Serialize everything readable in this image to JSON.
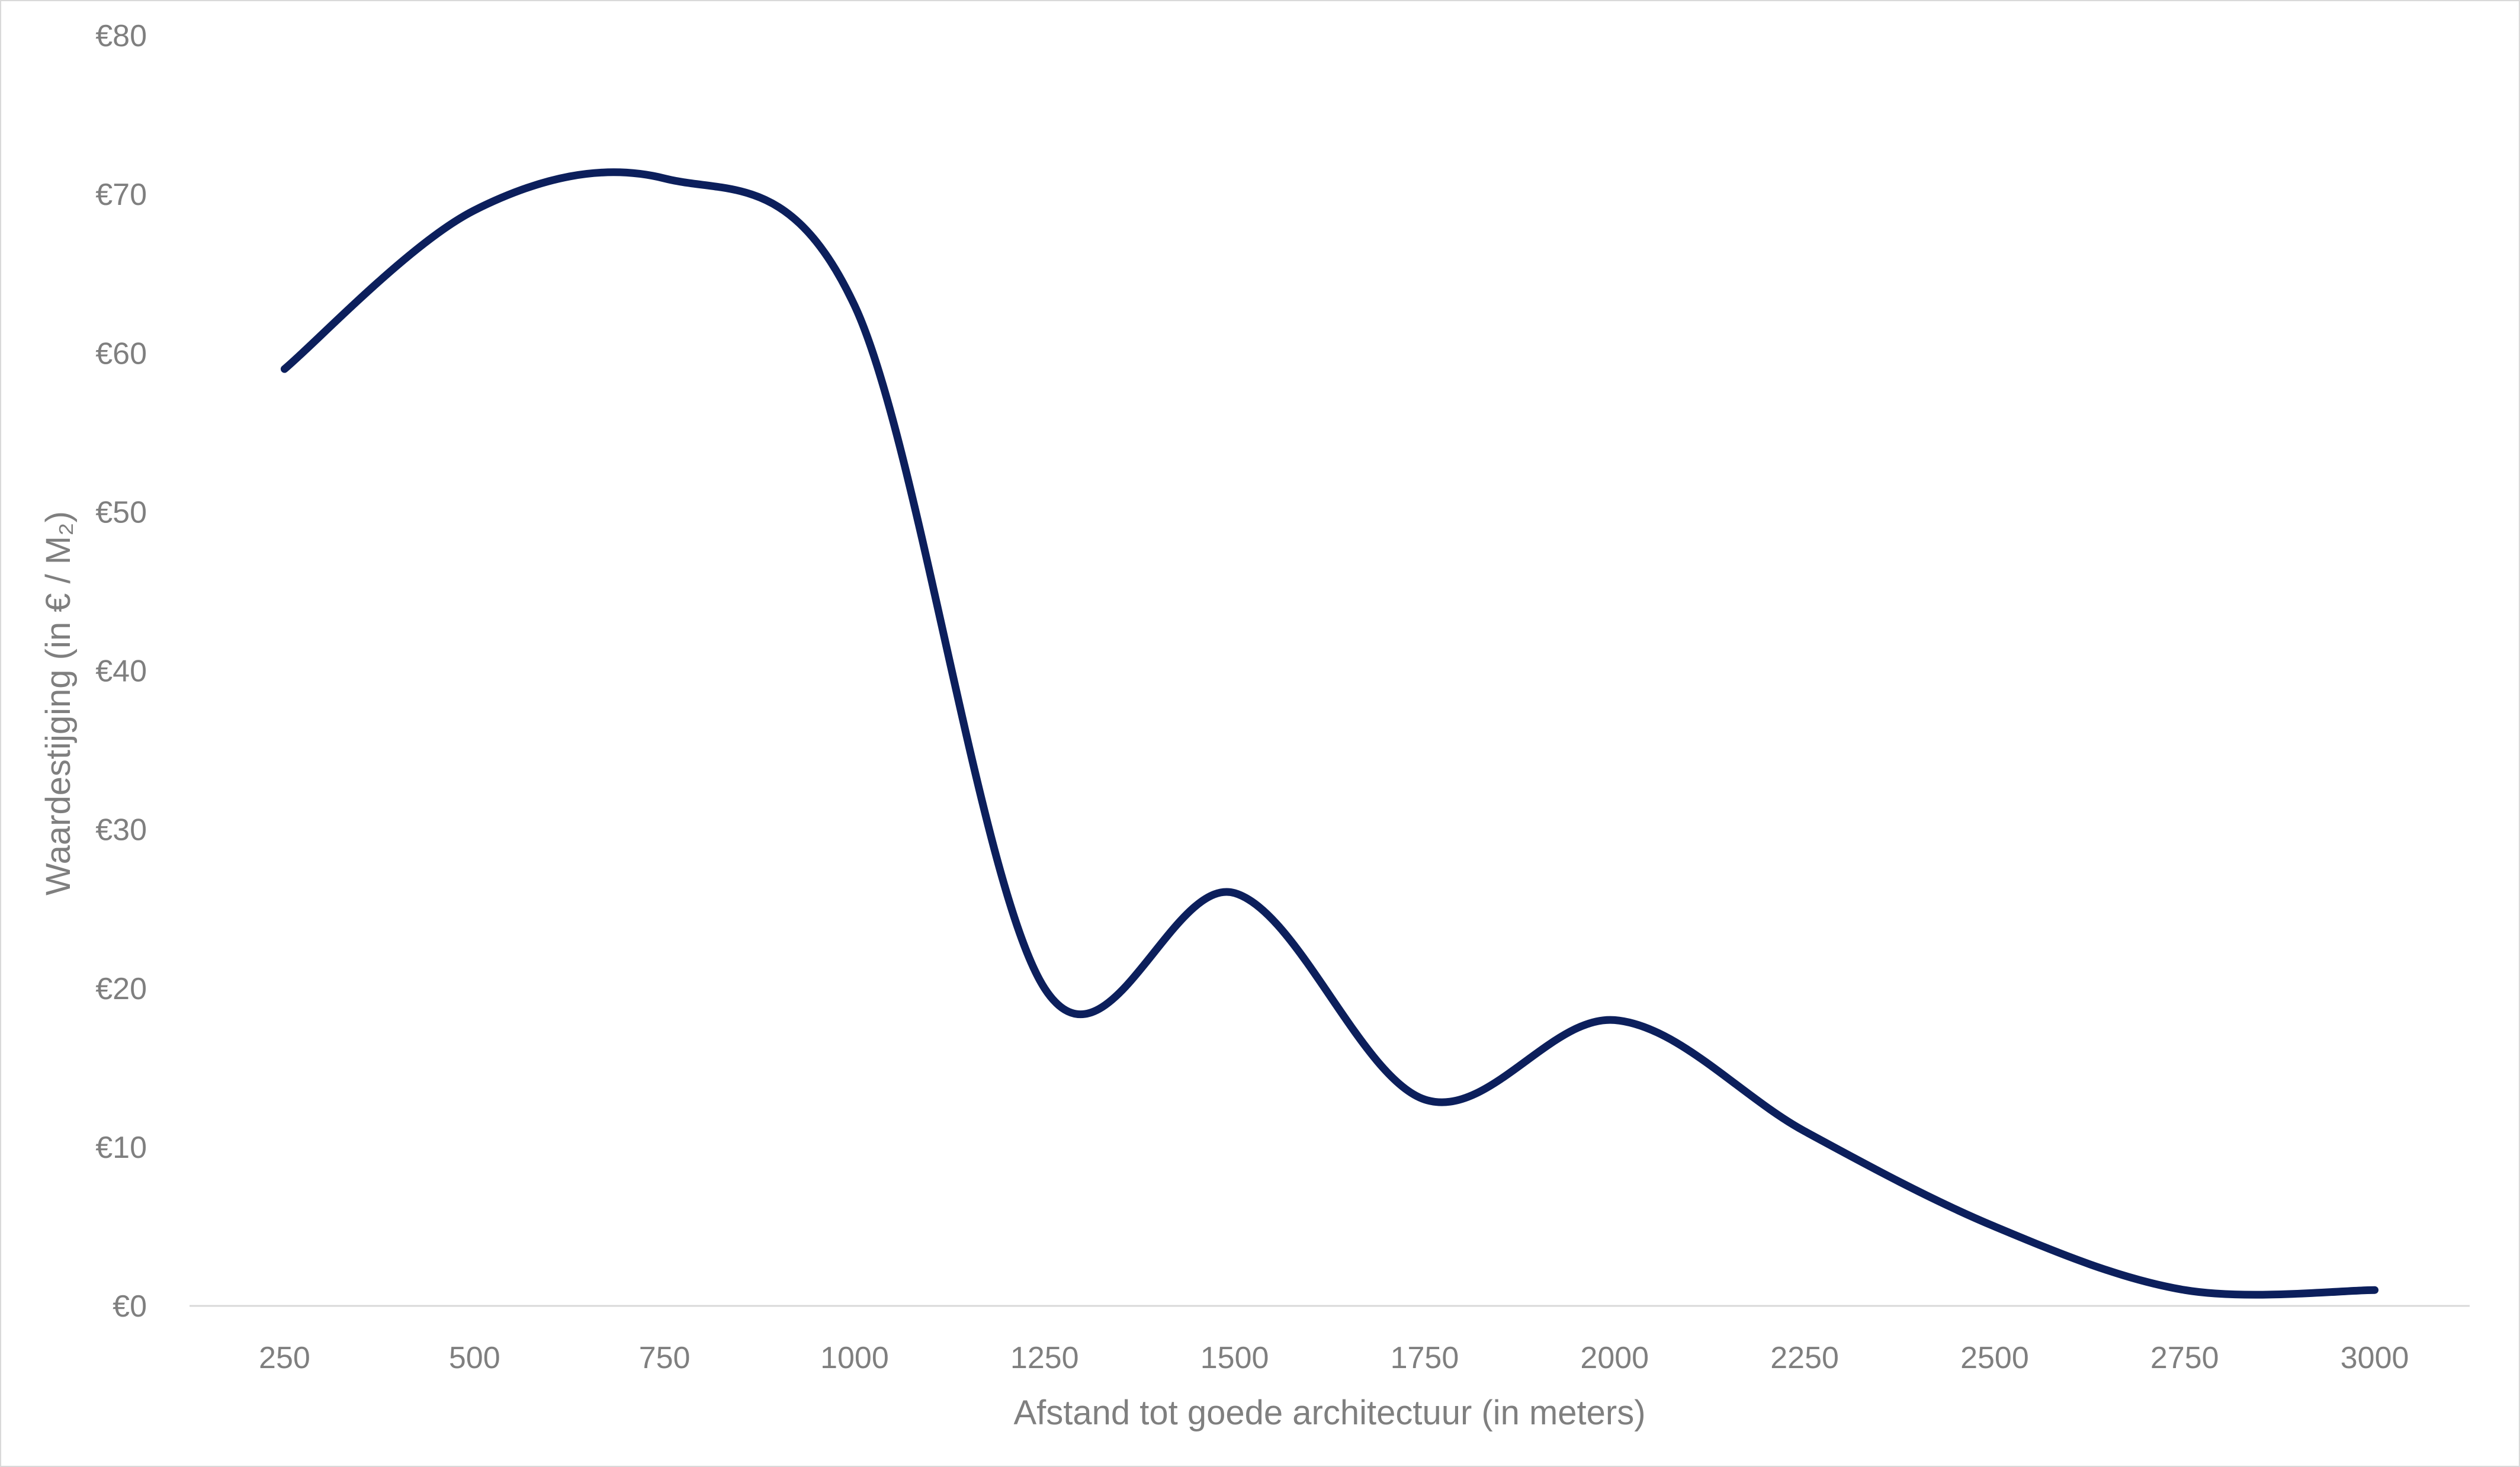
{
  "chart_data": {
    "type": "line",
    "title": "",
    "xlabel": "Afstand tot goede architectuur (in meters)",
    "ylabel": "Waardestijging (in € / M₂)",
    "x": [
      250,
      500,
      750,
      1000,
      1250,
      1500,
      1750,
      2000,
      2250,
      2500,
      2750,
      3000
    ],
    "x_tick_labels": [
      "250",
      "500",
      "750",
      "1000",
      "1250",
      "1500",
      "1750",
      "2000",
      "2250",
      "2500",
      "2750",
      "3000"
    ],
    "y_tick_values": [
      0,
      10,
      20,
      30,
      40,
      50,
      60,
      70,
      80
    ],
    "y_tick_labels": [
      "€0",
      "€10",
      "€20",
      "€30",
      "€40",
      "€50",
      "€60",
      "€70",
      "€80"
    ],
    "ylim": [
      0,
      80
    ],
    "grid": false,
    "legend": "none",
    "series": [
      {
        "values": [
          59,
          69,
          71,
          63,
          20,
          26,
          13,
          18,
          11,
          5,
          1,
          1
        ],
        "color": "#0c1f5c",
        "smooth": true
      }
    ]
  }
}
